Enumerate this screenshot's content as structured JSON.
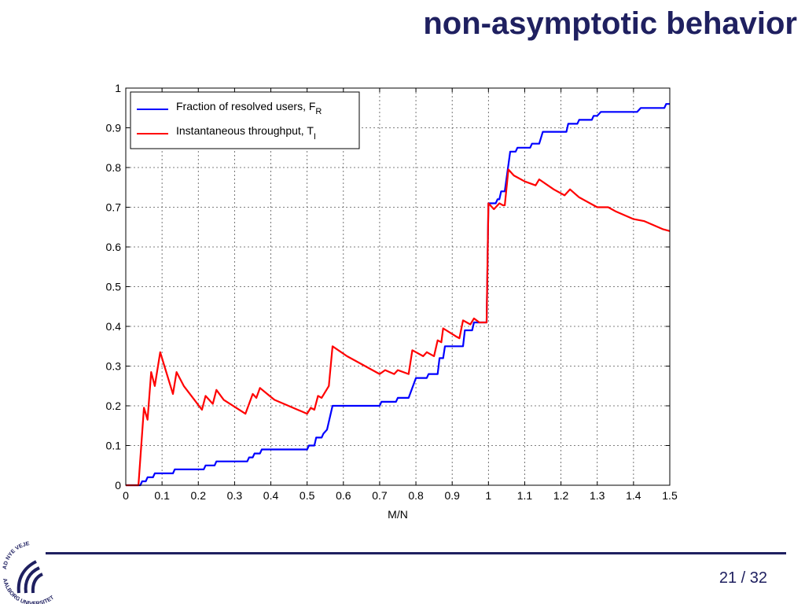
{
  "slide": {
    "title": "non-asymptotic behavior",
    "page_number": "21 / 32",
    "logo": {
      "name": "aalborg-universitet-logo",
      "text_top": "AD NYE VEJE",
      "text_bottom": "AALBORG UNIVERSITET"
    },
    "colors": {
      "title": "#1f2060",
      "rule": "#1f2060"
    }
  },
  "chart_data": {
    "type": "line",
    "title": "",
    "xlabel": "M/N",
    "ylabel": "",
    "xlim": [
      0,
      1.5
    ],
    "ylim": [
      0,
      1
    ],
    "xticks": [
      "0",
      "0.1",
      "0.2",
      "0.3",
      "0.4",
      "0.5",
      "0.6",
      "0.7",
      "0.8",
      "0.9",
      "1",
      "1.1",
      "1.2",
      "1.3",
      "1.4",
      "1.5"
    ],
    "yticks": [
      "0",
      "0.1",
      "0.2",
      "0.3",
      "0.4",
      "0.5",
      "0.6",
      "0.7",
      "0.8",
      "0.9",
      "1"
    ],
    "grid": true,
    "legend_position": "top-left",
    "series": [
      {
        "name": "Fraction of resolved users, F",
        "subscript": "R",
        "color": "#0000ff",
        "points": [
          [
            0,
            0
          ],
          [
            0.04,
            0
          ],
          [
            0.045,
            0.01
          ],
          [
            0.055,
            0.01
          ],
          [
            0.06,
            0.02
          ],
          [
            0.075,
            0.02
          ],
          [
            0.08,
            0.03
          ],
          [
            0.13,
            0.03
          ],
          [
            0.135,
            0.04
          ],
          [
            0.215,
            0.04
          ],
          [
            0.22,
            0.05
          ],
          [
            0.245,
            0.05
          ],
          [
            0.25,
            0.06
          ],
          [
            0.335,
            0.06
          ],
          [
            0.34,
            0.07
          ],
          [
            0.35,
            0.07
          ],
          [
            0.355,
            0.08
          ],
          [
            0.37,
            0.08
          ],
          [
            0.375,
            0.09
          ],
          [
            0.5,
            0.09
          ],
          [
            0.505,
            0.1
          ],
          [
            0.52,
            0.1
          ],
          [
            0.525,
            0.12
          ],
          [
            0.54,
            0.12
          ],
          [
            0.545,
            0.13
          ],
          [
            0.555,
            0.14
          ],
          [
            0.57,
            0.2
          ],
          [
            0.7,
            0.2
          ],
          [
            0.705,
            0.21
          ],
          [
            0.745,
            0.21
          ],
          [
            0.75,
            0.22
          ],
          [
            0.78,
            0.22
          ],
          [
            0.8,
            0.27
          ],
          [
            0.83,
            0.27
          ],
          [
            0.835,
            0.28
          ],
          [
            0.86,
            0.28
          ],
          [
            0.865,
            0.32
          ],
          [
            0.875,
            0.32
          ],
          [
            0.88,
            0.35
          ],
          [
            0.93,
            0.35
          ],
          [
            0.935,
            0.39
          ],
          [
            0.955,
            0.39
          ],
          [
            0.96,
            0.41
          ],
          [
            0.995,
            0.41
          ],
          [
            1.0,
            0.71
          ],
          [
            1.02,
            0.71
          ],
          [
            1.025,
            0.72
          ],
          [
            1.03,
            0.72
          ],
          [
            1.035,
            0.74
          ],
          [
            1.045,
            0.74
          ],
          [
            1.06,
            0.84
          ],
          [
            1.075,
            0.84
          ],
          [
            1.08,
            0.85
          ],
          [
            1.115,
            0.85
          ],
          [
            1.12,
            0.86
          ],
          [
            1.14,
            0.86
          ],
          [
            1.15,
            0.89
          ],
          [
            1.215,
            0.89
          ],
          [
            1.22,
            0.91
          ],
          [
            1.245,
            0.91
          ],
          [
            1.25,
            0.92
          ],
          [
            1.285,
            0.92
          ],
          [
            1.29,
            0.93
          ],
          [
            1.3,
            0.93
          ],
          [
            1.31,
            0.94
          ],
          [
            1.41,
            0.94
          ],
          [
            1.42,
            0.95
          ],
          [
            1.485,
            0.95
          ],
          [
            1.49,
            0.96
          ],
          [
            1.5,
            0.96
          ]
        ]
      },
      {
        "name": "Instantaneous throughput, T",
        "subscript": "I",
        "color": "#ff0000",
        "points": [
          [
            0,
            0
          ],
          [
            0.035,
            0
          ],
          [
            0.05,
            0.195
          ],
          [
            0.06,
            0.165
          ],
          [
            0.07,
            0.285
          ],
          [
            0.08,
            0.25
          ],
          [
            0.095,
            0.335
          ],
          [
            0.105,
            0.305
          ],
          [
            0.13,
            0.23
          ],
          [
            0.14,
            0.285
          ],
          [
            0.16,
            0.25
          ],
          [
            0.21,
            0.19
          ],
          [
            0.22,
            0.225
          ],
          [
            0.24,
            0.205
          ],
          [
            0.25,
            0.24
          ],
          [
            0.27,
            0.215
          ],
          [
            0.33,
            0.18
          ],
          [
            0.35,
            0.23
          ],
          [
            0.36,
            0.22
          ],
          [
            0.37,
            0.245
          ],
          [
            0.39,
            0.23
          ],
          [
            0.41,
            0.215
          ],
          [
            0.5,
            0.18
          ],
          [
            0.51,
            0.195
          ],
          [
            0.52,
            0.19
          ],
          [
            0.53,
            0.225
          ],
          [
            0.54,
            0.22
          ],
          [
            0.56,
            0.25
          ],
          [
            0.57,
            0.35
          ],
          [
            0.61,
            0.325
          ],
          [
            0.65,
            0.305
          ],
          [
            0.7,
            0.28
          ],
          [
            0.715,
            0.29
          ],
          [
            0.74,
            0.28
          ],
          [
            0.75,
            0.29
          ],
          [
            0.78,
            0.28
          ],
          [
            0.79,
            0.34
          ],
          [
            0.82,
            0.325
          ],
          [
            0.83,
            0.335
          ],
          [
            0.85,
            0.325
          ],
          [
            0.86,
            0.365
          ],
          [
            0.87,
            0.36
          ],
          [
            0.875,
            0.395
          ],
          [
            0.91,
            0.375
          ],
          [
            0.92,
            0.37
          ],
          [
            0.93,
            0.415
          ],
          [
            0.95,
            0.405
          ],
          [
            0.96,
            0.42
          ],
          [
            0.975,
            0.41
          ],
          [
            0.995,
            0.41
          ],
          [
            1.0,
            0.71
          ],
          [
            1.015,
            0.695
          ],
          [
            1.03,
            0.71
          ],
          [
            1.04,
            0.705
          ],
          [
            1.045,
            0.705
          ],
          [
            1.055,
            0.795
          ],
          [
            1.07,
            0.78
          ],
          [
            1.1,
            0.765
          ],
          [
            1.13,
            0.755
          ],
          [
            1.14,
            0.77
          ],
          [
            1.18,
            0.745
          ],
          [
            1.21,
            0.73
          ],
          [
            1.225,
            0.745
          ],
          [
            1.25,
            0.725
          ],
          [
            1.3,
            0.7
          ],
          [
            1.33,
            0.7
          ],
          [
            1.35,
            0.69
          ],
          [
            1.4,
            0.67
          ],
          [
            1.43,
            0.665
          ],
          [
            1.48,
            0.645
          ],
          [
            1.5,
            0.64
          ]
        ]
      }
    ]
  }
}
